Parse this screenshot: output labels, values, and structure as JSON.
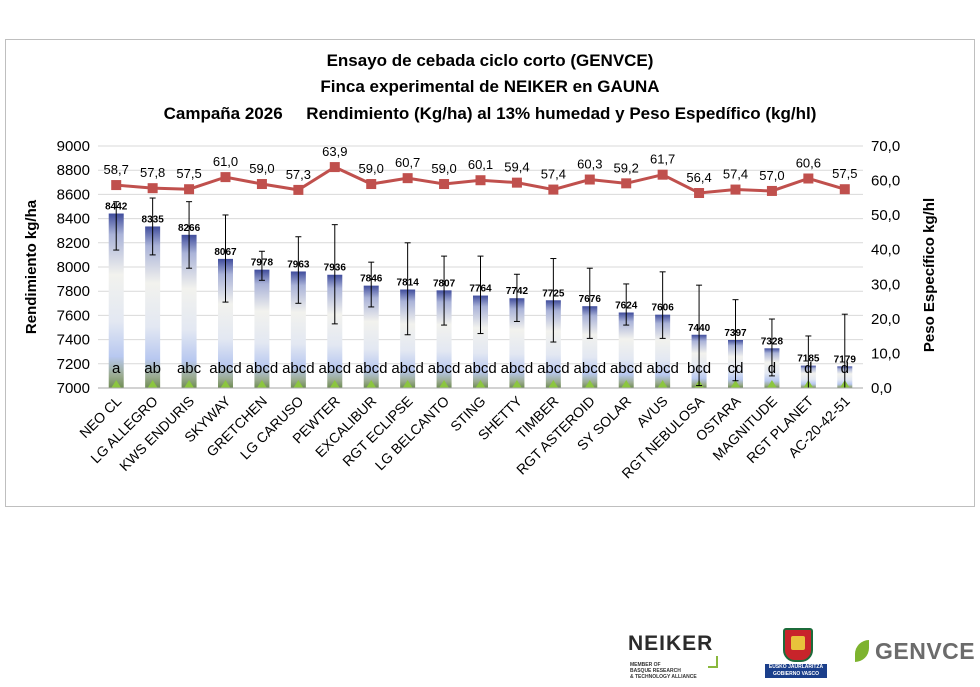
{
  "chart_data": {
    "type": "bar",
    "title_lines": [
      "Ensayo de cebada ciclo corto (GENVCE)",
      "Finca experimental de NEIKER en GAUNA",
      "Campaña 2026     Rendimiento (Kg/ha) al 13% humedad y Peso Espedífico (kg/hl)"
    ],
    "ylabel": "Rendimiento  kg/ha",
    "y2label": "Peso Específico kg/hl",
    "ylim": [
      7000,
      9000
    ],
    "y_ticks": [
      "7000",
      "7200",
      "7400",
      "7600",
      "7800",
      "8000",
      "8200",
      "8400",
      "8600",
      "8800",
      "9000"
    ],
    "y2lim": [
      0,
      70
    ],
    "y2_ticks": [
      "0,0",
      "10,0",
      "20,0",
      "30,0",
      "40,0",
      "50,0",
      "60,0",
      "70,0"
    ],
    "grid": "horizontal",
    "categories": [
      "NEO CL",
      "LG ALLEGRO",
      "KWS ENDURIS",
      "SKYWAY",
      "GRETCHEN",
      "LG CARUSO",
      "PEWTER",
      "EXCALIBUR",
      "RGT ECLIPSE",
      "LG BELCANTO",
      "STING",
      "SHETTY",
      "TIMBER",
      "RGT ASTEROID",
      "SY SOLAR",
      "AVUS",
      "RGT NEBULOSA",
      "OSTARA",
      "MAGNITUDE",
      "RGT PLANET",
      "AC-20-42-51"
    ],
    "series": [
      {
        "name": "",
        "axis": "left",
        "kind": "bar",
        "values": [
          8442,
          8335,
          8266,
          8067,
          7978,
          7963,
          7936,
          7846,
          7814,
          7807,
          7764,
          7742,
          7725,
          7676,
          7624,
          7606,
          7440,
          7397,
          7328,
          7185,
          7179
        ],
        "labels": [
          "8442",
          "8335",
          "8266",
          "8067",
          "7978",
          "7963",
          "7936",
          "7846",
          "7814",
          "7807",
          "7764",
          "7742",
          "7725",
          "7676",
          "7624",
          "7606",
          "7440",
          "7397",
          "7328",
          "7185",
          "7179"
        ],
        "error_low": [
          8140,
          8100,
          7990,
          7710,
          7890,
          7700,
          7530,
          7670,
          7440,
          7520,
          7450,
          7550,
          7380,
          7410,
          7520,
          7410,
          7020,
          7060,
          7100,
          7000,
          7000
        ],
        "error_high": [
          8540,
          8570,
          8540,
          8430,
          8130,
          8250,
          8350,
          8040,
          8200,
          8090,
          8090,
          7940,
          8070,
          7990,
          7860,
          7960,
          7850,
          7730,
          7570,
          7430,
          7610
        ],
        "groups": [
          "a",
          "ab",
          "abc",
          "abcd",
          "abcd",
          "abcd",
          "abcd",
          "abcd",
          "abcd",
          "abcd",
          "abcd",
          "abcd",
          "abcd",
          "abcd",
          "abcd",
          "abcd",
          "bcd",
          "cd",
          "d",
          "d",
          "d"
        ]
      },
      {
        "name": "",
        "axis": "right",
        "kind": "line",
        "values": [
          58.7,
          57.8,
          57.5,
          61.0,
          59.0,
          57.3,
          63.9,
          59.0,
          60.7,
          59.0,
          60.1,
          59.4,
          57.4,
          60.3,
          59.2,
          61.7,
          56.4,
          57.4,
          57.0,
          60.6,
          57.5
        ],
        "labels": [
          "58,7",
          "57,8",
          "57,5",
          "61,0",
          "59,0",
          "57,3",
          "63,9",
          "59,0",
          "60,7",
          "59,0",
          "60,1",
          "59,4",
          "57,4",
          "60,3",
          "59,2",
          "61,7",
          "56,4",
          "57,4",
          "57,0",
          "60,6",
          "57,5"
        ]
      }
    ],
    "colors": {
      "bar_top": "#3f4c9c",
      "bar_mid": "#f2f2ee",
      "bar_low": "#b8c8f0",
      "bar_base": "#6e8c52",
      "line": "#c0504d",
      "baseline_marker": "#8cc63f",
      "grid": "#d9d9d9"
    }
  },
  "logos": {
    "neiker": {
      "name": "NEIKER",
      "subtitle": [
        "MEMBER OF",
        "BASQUE RESEARCH",
        "& TECHNOLOGY ALLIANCE"
      ]
    },
    "gobierno_vasco": {
      "lines": [
        "EUSKO JAURLARITZA",
        "GOBIERNO VASCO"
      ]
    },
    "genvce": {
      "name": "GENVCE"
    }
  }
}
